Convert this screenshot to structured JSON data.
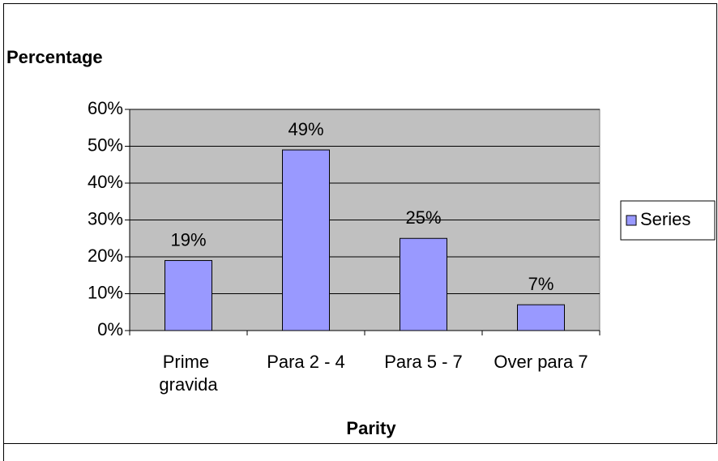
{
  "chart_data": {
    "type": "bar",
    "y_label": "Percentage",
    "x_label": "Parity",
    "categories": [
      "Prime gravida",
      "Para 2 - 4",
      "Para 5 - 7",
      "Over para 7"
    ],
    "series": [
      {
        "name": "Series",
        "color": "#9999ff",
        "values": [
          19,
          49,
          25,
          7
        ],
        "value_labels": [
          "19%",
          "49%",
          "25%",
          "7%"
        ]
      }
    ],
    "ylim": [
      0,
      60
    ],
    "yticks": [
      {
        "value": 0,
        "label": "0%"
      },
      {
        "value": 10,
        "label": "10%"
      },
      {
        "value": 20,
        "label": "20%"
      },
      {
        "value": 30,
        "label": "30%"
      },
      {
        "value": 40,
        "label": "40%"
      },
      {
        "value": 50,
        "label": "50%"
      },
      {
        "value": 60,
        "label": "60%"
      }
    ],
    "grid": true,
    "plot_background": "#c0c0c0",
    "legend": "right"
  }
}
